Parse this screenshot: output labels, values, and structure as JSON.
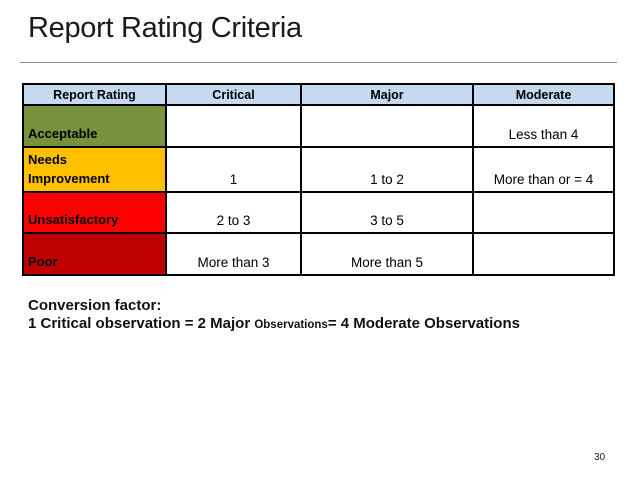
{
  "slide": {
    "title": "Report Rating Criteria",
    "page_number": "30"
  },
  "table": {
    "header_bg": "#C5D9F1",
    "headers": [
      "Report Rating",
      "Critical",
      "Major",
      "Moderate"
    ],
    "rows": [
      {
        "label": "Acceptable",
        "color": "#76923C",
        "critical": "",
        "major": "",
        "moderate": "Less than 4"
      },
      {
        "label": "Needs Improvement",
        "color": "#FFC000",
        "critical": "1",
        "major": "1 to 2",
        "moderate": "More than or = 4"
      },
      {
        "label": "Unsatisfactory",
        "color": "#FF0000",
        "critical": "2 to 3",
        "major": "3 to 5",
        "moderate": ""
      },
      {
        "label": "Poor",
        "color": "#C00000",
        "critical": "More than 3",
        "major": "More than 5",
        "moderate": ""
      }
    ]
  },
  "notes": {
    "conversion_title": "Conversion factor:",
    "equation_part1": "1 Critical observation = 2 Major ",
    "equation_part2": "Observations",
    "equation_part3": "= 4 Moderate Observations"
  }
}
